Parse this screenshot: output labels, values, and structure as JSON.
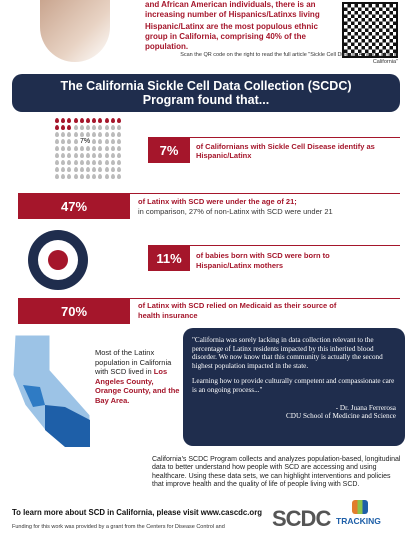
{
  "intro": {
    "lead": "and African American individuals, there is an increasing number of Hispanics/Latinxs living with SCD.",
    "population": "Hispanic/Latinx are the most populous ethnic group in California, comprising 40% of the population.",
    "qr_note": "Scan the QR code on the right to read the full article \"Sickle Cell Disease Among Latinx in California\""
  },
  "banner": "The California Sickle Cell Data Collection (SCDC) Program found that...",
  "findings": [
    {
      "icon_label": "7%",
      "stat": "7%",
      "text": "of Californians with Sickle Cell Disease identify as Hispanic/Latinx"
    },
    {
      "stat": "47%",
      "text": "of Latinx with SCD were under the age of 21;",
      "subtext": "in comparison, 27% of non-Latinx with SCD were under 21"
    },
    {
      "stat": "11%",
      "text": "of babies born with SCD were born to Hispanic/Latinx mothers"
    },
    {
      "stat": "70%",
      "text": "of Latinx with SCD relied on Medicaid as their source of health insurance"
    }
  ],
  "map_caption": {
    "before": "Most of the Latinx population in California with SCD lived in ",
    "highlight": "Los Angeles County, Orange County, and the Bay Area."
  },
  "quote": {
    "text1": "\"California was sorely lacking in data collection relevant to the percentage of Latinx residents impacted by this inherited blood disorder. We now know that this community is actually the second highest population impacted in the state.",
    "text2": "Learning how to provide culturally competent and compassionate care is an ongoing process...\"",
    "author": "- Dr. Juana Ferrerosa",
    "affiliation": "CDU School of Medicine and Science"
  },
  "about": "California's SCDC Program collects and analyzes population-based, longitudinal data to better understand how people with SCD are accessing and using healthcare. Using these data sets, we can highlight interventions and policies that improve health and the quality of life of people living with SCD.",
  "footer": {
    "learn_more": "To learn more about SCD in California, please visit www.cascdc.org",
    "funding": "Funding for this work was provided by a grant from the Centers for Disease Control and",
    "logo_scdc": "SCDC",
    "logo_tracking": "TRACKING"
  }
}
